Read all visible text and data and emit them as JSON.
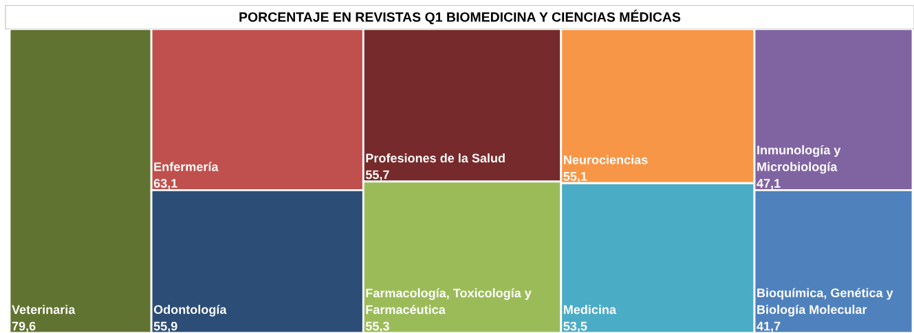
{
  "chart_data": {
    "type": "other",
    "title": "PORCENTAJE EN REVISTAS Q1 BIOMEDICINA Y CIENCIAS MÉDICAS",
    "categories": [
      "Veterinaria",
      "Enfermería",
      "Odontología",
      "Profesiones de la Salud",
      "Farmacología, Toxicología y Farmacéutica",
      "Neurociencias",
      "Medicina",
      "Inmunología y Microbiología",
      "Bioquímica, Genética y Biología Molecular"
    ],
    "values": [
      79.6,
      63.1,
      55.9,
      55.7,
      55.3,
      55.1,
      53.5,
      47.1,
      41.7
    ],
    "value_labels": [
      "79,6",
      "63,1",
      "55,9",
      "55,7",
      "55,3",
      "55,1",
      "53,5",
      "47,1",
      "41,7"
    ],
    "colors": [
      "#617330",
      "#c0504d",
      "#2c4d75",
      "#772a2b",
      "#9bbb59",
      "#f79646",
      "#4bacc6",
      "#8064a2",
      "#4f81bd"
    ]
  }
}
